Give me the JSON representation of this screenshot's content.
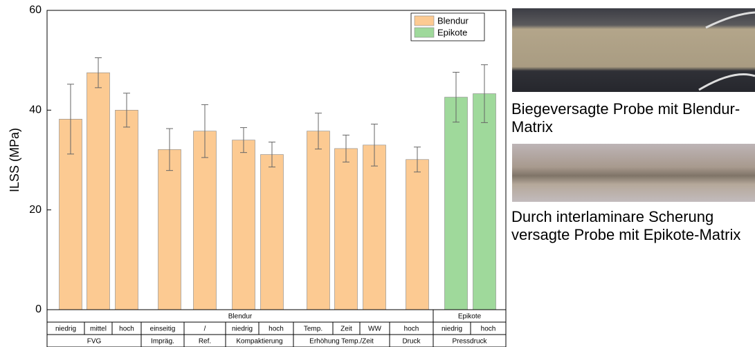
{
  "chart_data": {
    "type": "bar",
    "ylabel": "ILSS (MPa)",
    "categories": [
      "niedrig",
      "mittel",
      "hoch",
      "einseitig",
      "/",
      "niedrig",
      "hoch",
      "Temp.",
      "Zeit",
      "WW",
      "hoch",
      "niedrig",
      "hoch"
    ],
    "series": [
      {
        "name": "Blendur",
        "color": "#fcca92",
        "values": [
          38.2,
          47.5,
          40,
          32.1,
          35.8,
          34,
          31.1,
          35.8,
          32.3,
          33,
          30.1,
          null,
          null
        ],
        "errors": [
          7,
          3,
          3.4,
          4.2,
          5.3,
          2.5,
          2.5,
          3.6,
          2.7,
          4.2,
          2.5,
          null,
          null
        ]
      },
      {
        "name": "Epikote",
        "color": "#9fd99b",
        "values": [
          null,
          null,
          null,
          null,
          null,
          null,
          null,
          null,
          null,
          null,
          null,
          42.6,
          43.3
        ],
        "errors": [
          null,
          null,
          null,
          null,
          null,
          null,
          null,
          null,
          null,
          null,
          null,
          5,
          5.8
        ]
      }
    ],
    "matrix_row": [
      "Blendur",
      "Epikote"
    ],
    "group_row": [
      "FVG",
      "Impräg.",
      "Ref.",
      "Kompaktierung",
      "Erhöhung Temp./Zeit",
      "Druck",
      "Pressdruck"
    ],
    "ylim": [
      0,
      60
    ],
    "yticks": [
      0,
      20,
      40,
      60
    ],
    "legend": "upper right"
  },
  "captions": [
    "Biegeversagte Probe mit Blendur-Matrix",
    "Durch interlaminare Scherung versagte Probe mit Epikote-Matrix"
  ]
}
